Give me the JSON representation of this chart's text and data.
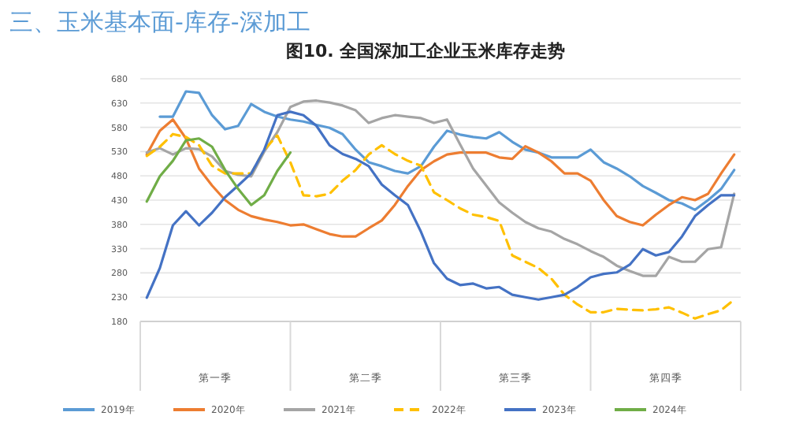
{
  "chart_data": {
    "type": "line",
    "title": "图10. 全国深加工企业玉米库存走势",
    "subtitle": "三、玉米基本面-库存-深加工",
    "categories": [
      null,
      null,
      null,
      null,
      null,
      null,
      null,
      null,
      null,
      null,
      null,
      null,
      null,
      null,
      null,
      null,
      null,
      null,
      null,
      null,
      null,
      null,
      null,
      null,
      null,
      null,
      null,
      null,
      null,
      null,
      null,
      null,
      null,
      null,
      null,
      null,
      null,
      null,
      null,
      null,
      null,
      null,
      null,
      null,
      null,
      null
    ],
    "series": [
      {
        "name": "2019年",
        "color": "#5b9bd5",
        "values": [
          null,
          602,
          602,
          654,
          651,
          605,
          576,
          583,
          628,
          612,
          602,
          596,
          592,
          585,
          579,
          566,
          534,
          508,
          500,
          490,
          485,
          500,
          540,
          573,
          565,
          560,
          557,
          570,
          550,
          534,
          528,
          518,
          518,
          518,
          534,
          508,
          495,
          479,
          459,
          445,
          430,
          423,
          410,
          430,
          453,
          492
        ]
      },
      {
        "name": "2020年",
        "color": "#ed7d31",
        "values": [
          524,
          573,
          596,
          557,
          495,
          460,
          430,
          410,
          397,
          390,
          385,
          378,
          380,
          370,
          360,
          355,
          355,
          372,
          388,
          420,
          459,
          492,
          510,
          524,
          528,
          528,
          528,
          518,
          515,
          541,
          528,
          510,
          485,
          485,
          470,
          430,
          397,
          385,
          378,
          400,
          420,
          436,
          430,
          443,
          485,
          524
        ]
      },
      {
        "name": "2021年",
        "color": "#a5a5a5",
        "values": [
          528,
          537,
          524,
          537,
          535,
          520,
          490,
          482,
          479,
          530,
          570,
          622,
          633,
          635,
          631,
          625,
          615,
          589,
          599,
          605,
          602,
          599,
          589,
          596,
          545,
          495,
          460,
          425,
          404,
          385,
          372,
          365,
          350,
          339,
          325,
          313,
          295,
          284,
          274,
          274,
          313,
          303,
          303,
          329,
          333,
          443
        ]
      },
      {
        "name": "2022年",
        "color": "#ffc000",
        "line_style": "dashed",
        "values": [
          521,
          540,
          566,
          560,
          543,
          501,
          485,
          485,
          485,
          534,
          563,
          508,
          440,
          438,
          443,
          470,
          492,
          524,
          543,
          525,
          511,
          501,
          446,
          430,
          413,
          400,
          395,
          387,
          316,
          303,
          290,
          268,
          235,
          215,
          199,
          199,
          206,
          204,
          203,
          205,
          209,
          198,
          186,
          195,
          203,
          225
        ]
      },
      {
        "name": "2023年",
        "color": "#4472c4",
        "values": [
          229,
          290,
          378,
          407,
          378,
          404,
          436,
          460,
          485,
          534,
          605,
          612,
          605,
          583,
          543,
          525,
          515,
          500,
          462,
          440,
          420,
          365,
          300,
          268,
          255,
          258,
          248,
          251,
          235,
          230,
          225,
          230,
          235,
          251,
          271,
          278,
          281,
          297,
          329,
          316,
          323,
          355,
          397,
          420,
          440,
          440
        ]
      },
      {
        "name": "2024年",
        "color": "#70ad47",
        "values": [
          427,
          479,
          511,
          553,
          557,
          540,
          492,
          453,
          420,
          440,
          490,
          528,
          null,
          null,
          null,
          null,
          null,
          null,
          null,
          null,
          null,
          null,
          null,
          null,
          null,
          null,
          null,
          null,
          null,
          null,
          null,
          null,
          null,
          null,
          null,
          null,
          null,
          null,
          null,
          null,
          null,
          null,
          null,
          null,
          null,
          null
        ]
      }
    ],
    "ylim": [
      180,
      680
    ],
    "yticks": [
      180,
      230,
      280,
      330,
      380,
      430,
      480,
      530,
      580,
      630,
      680
    ],
    "grid": "y",
    "legend": "bottom",
    "marker": "none",
    "annotations": [
      "第一季",
      "第二季",
      "第三季",
      "第四季"
    ]
  }
}
